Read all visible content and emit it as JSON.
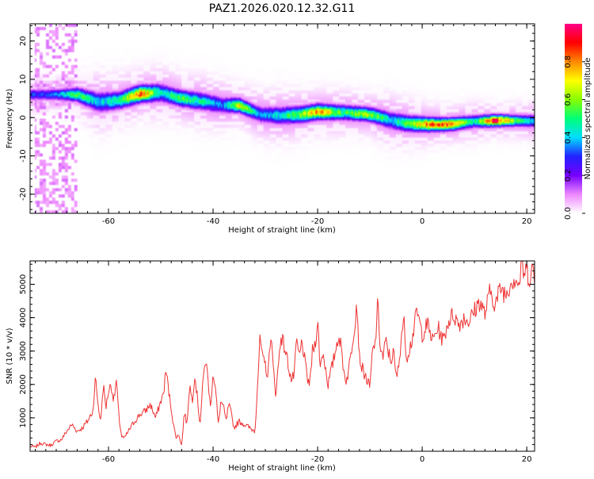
{
  "title": "PAZ1.2026.020.12.32.G11",
  "chart_data": [
    {
      "type": "heatmap",
      "title": "PAZ1.2026.020.12.32.G11",
      "xlabel": "Height of straight line (km)",
      "ylabel": "Frequency (Hz)",
      "xlim": [
        -75,
        21.5
      ],
      "ylim": [
        -25,
        24.5
      ],
      "xticks": [
        -60,
        -40,
        -20,
        0,
        20
      ],
      "yticks": [
        -20,
        -10,
        0,
        10,
        20
      ],
      "ridge": [
        {
          "x": -74,
          "y": 6.0,
          "a": 0.32,
          "w": 0.9
        },
        {
          "x": -70,
          "y": 6.0,
          "a": 0.35,
          "w": 0.9
        },
        {
          "x": -66,
          "y": 6.0,
          "a": 0.55,
          "w": 1.1
        },
        {
          "x": -62,
          "y": 4.0,
          "a": 0.4,
          "w": 1.6
        },
        {
          "x": -58,
          "y": 4.5,
          "a": 0.5,
          "w": 1.4
        },
        {
          "x": -54,
          "y": 6.2,
          "a": 0.85,
          "w": 1.3
        },
        {
          "x": -50,
          "y": 6.5,
          "a": 0.45,
          "w": 1.4
        },
        {
          "x": -46,
          "y": 5.0,
          "a": 0.55,
          "w": 1.3
        },
        {
          "x": -42,
          "y": 4.2,
          "a": 0.45,
          "w": 1.4
        },
        {
          "x": -38,
          "y": 3.2,
          "a": 0.35,
          "w": 1.3
        },
        {
          "x": -35,
          "y": 3.2,
          "a": 0.7,
          "w": 1.1
        },
        {
          "x": -31,
          "y": 0.8,
          "a": 0.35,
          "w": 1.3
        },
        {
          "x": -27,
          "y": 0.5,
          "a": 0.45,
          "w": 1.4
        },
        {
          "x": -23,
          "y": 0.8,
          "a": 0.6,
          "w": 1.3
        },
        {
          "x": -20,
          "y": 1.5,
          "a": 0.8,
          "w": 1.2
        },
        {
          "x": -15,
          "y": 1.3,
          "a": 0.5,
          "w": 1.2
        },
        {
          "x": -10,
          "y": 0.8,
          "a": 0.65,
          "w": 1.1
        },
        {
          "x": -6,
          "y": -0.7,
          "a": 0.4,
          "w": 1.4
        },
        {
          "x": -3,
          "y": -1.5,
          "a": 0.55,
          "w": 1.3
        },
        {
          "x": 1,
          "y": -1.8,
          "a": 0.8,
          "w": 1.1
        },
        {
          "x": 5,
          "y": -1.8,
          "a": 0.85,
          "w": 1.0
        },
        {
          "x": 10,
          "y": -1.0,
          "a": 0.45,
          "w": 1.0
        },
        {
          "x": 14,
          "y": -0.8,
          "a": 0.95,
          "w": 0.9
        },
        {
          "x": 18,
          "y": -0.8,
          "a": 0.55,
          "w": 0.9
        },
        {
          "x": 21.5,
          "y": -0.9,
          "a": 0.4,
          "w": 1.0
        }
      ],
      "noise_band": {
        "x_center": -70,
        "x_halfwidth": 4,
        "amplitude": 0.12
      },
      "colorbar": {
        "label": "Normalized spectral amplitude",
        "ticks": [
          "0.0",
          "0.2",
          "0.4",
          "0.6",
          "0.8"
        ],
        "range": [
          0,
          1
        ],
        "colors": [
          "#ffffff",
          "#ee88ff",
          "#7700ff",
          "#2222ff",
          "#00ddff",
          "#00ff77",
          "#88ff00",
          "#ffff00",
          "#ff8800",
          "#ff0000",
          "#ff0088"
        ]
      }
    },
    {
      "type": "line",
      "xlabel": "Height of straight line (km)",
      "ylabel": "SNR (10 * v/v)",
      "xlim": [
        -75,
        21.5
      ],
      "ylim": [
        0,
        5700
      ],
      "xticks": [
        -60,
        -40,
        -20,
        0,
        20
      ],
      "yticks": [
        1000,
        2000,
        3000,
        4000,
        5000
      ],
      "color": "#ee3333",
      "series_x": [
        -75,
        -74,
        -73,
        -72,
        -71,
        -70,
        -69,
        -68,
        -67,
        -66,
        -65,
        -64,
        -63,
        -62.5,
        -62,
        -61.5,
        -61,
        -60.5,
        -60,
        -59.5,
        -59,
        -58.5,
        -58,
        -57.5,
        -57,
        -56,
        -55,
        -54,
        -53,
        -52,
        -51,
        -50,
        -49.5,
        -49,
        -48.5,
        -48,
        -47.5,
        -47,
        -46.5,
        -46,
        -45.5,
        -45,
        -44.5,
        -44,
        -43.5,
        -43,
        -42.5,
        -42,
        -41.5,
        -41,
        -40.5,
        -40,
        -39.5,
        -39,
        -38.5,
        -38,
        -37.5,
        -37,
        -36.5,
        -36,
        -35,
        -34,
        -33,
        -32,
        -31,
        -30.5,
        -30,
        -29.5,
        -29,
        -28.5,
        -28,
        -27,
        -26,
        -25,
        -24.5,
        -24,
        -23.5,
        -23,
        -22,
        -21.5,
        -21,
        -20.5,
        -20,
        -19.5,
        -19,
        -18,
        -17,
        -16,
        -15.5,
        -15,
        -14.5,
        -14,
        -13,
        -12.5,
        -12,
        -11.5,
        -11,
        -10,
        -9.5,
        -9,
        -8.5,
        -8,
        -7.5,
        -7,
        -6,
        -5.5,
        -5,
        -4.5,
        -4,
        -3.5,
        -3,
        -2,
        -1,
        0,
        1,
        2,
        3,
        4,
        5,
        6,
        7,
        8,
        9,
        10,
        11,
        12,
        13,
        14,
        15,
        16,
        17,
        18,
        18.5,
        19,
        19.5,
        20,
        20.5,
        21,
        21.5
      ],
      "series_y": [
        150,
        120,
        250,
        200,
        180,
        300,
        350,
        600,
        800,
        600,
        700,
        900,
        1200,
        2200,
        1400,
        900,
        2000,
        1300,
        1800,
        2000,
        1500,
        2100,
        1000,
        450,
        380,
        650,
        900,
        1100,
        1200,
        1400,
        1000,
        1500,
        1700,
        2450,
        1800,
        1300,
        700,
        400,
        500,
        150,
        1200,
        800,
        2000,
        1500,
        2300,
        1600,
        800,
        1900,
        2800,
        2200,
        1300,
        2400,
        1800,
        800,
        1500,
        1300,
        900,
        1400,
        1100,
        700,
        900,
        800,
        700,
        600,
        3400,
        2700,
        2600,
        2200,
        3600,
        2500,
        1700,
        3500,
        2900,
        2100,
        2300,
        3300,
        2800,
        3300,
        2200,
        2000,
        3000,
        3200,
        3900,
        2500,
        3000,
        2000,
        2700,
        3500,
        3100,
        2400,
        2100,
        2500,
        3700,
        4500,
        2800,
        2500,
        2300,
        1900,
        3000,
        3200,
        4400,
        3100,
        2800,
        3300,
        2700,
        3000,
        2200,
        2500,
        3500,
        3900,
        2800,
        3300,
        4200,
        3500,
        3800,
        3300,
        3700,
        3300,
        3900,
        4100,
        3800,
        4000,
        3900,
        4200,
        4500,
        4100,
        4800,
        4400,
        4900,
        4700,
        5100,
        5200,
        4900,
        5650,
        5300,
        5400,
        5200,
        5500,
        5100
      ]
    }
  ]
}
